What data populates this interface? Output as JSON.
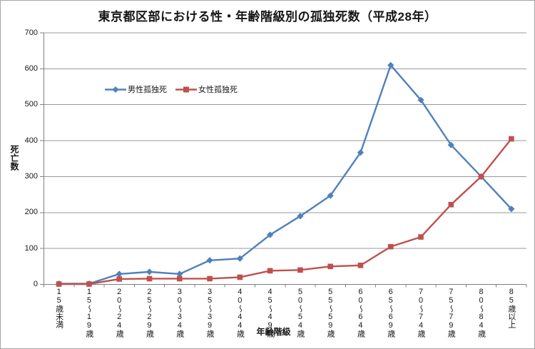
{
  "chart_data": {
    "type": "line",
    "title": "東京都区部における性・年齢階級別の孤独死数（平成28年）",
    "xlabel": "年齢階級",
    "ylabel": "死亡数",
    "ylim": [
      0,
      700
    ],
    "yticks": [
      0,
      100,
      200,
      300,
      400,
      500,
      600,
      700
    ],
    "grid": true,
    "legend_position": "inside-upper-left",
    "categories": [
      "15歳未満",
      "15～19歳",
      "20～24歳",
      "25～29歳",
      "30～34歳",
      "35～39歳",
      "40～44歳",
      "45～49歳",
      "50～54歳",
      "55～59歳",
      "60～64歳",
      "65～69歳",
      "70～74歳",
      "75～79歳",
      "80～84歳",
      "85歳以上"
    ],
    "series": [
      {
        "id": "male",
        "name": "男性孤独死",
        "color": "#4f81bd",
        "marker": "diamond",
        "values": [
          2,
          2,
          29,
          35,
          29,
          67,
          72,
          138,
          190,
          247,
          367,
          610,
          513,
          388,
          300,
          210
        ]
      },
      {
        "id": "female",
        "name": "女性孤独死",
        "color": "#c0504d",
        "marker": "square",
        "values": [
          1,
          1,
          15,
          16,
          16,
          16,
          20,
          38,
          40,
          50,
          53,
          105,
          132,
          222,
          300,
          405
        ]
      }
    ]
  },
  "colors": {
    "gridline": "#999999",
    "axis": "#808080",
    "tick": "#808080",
    "border": "#a6a6a6",
    "text": "#161616"
  }
}
